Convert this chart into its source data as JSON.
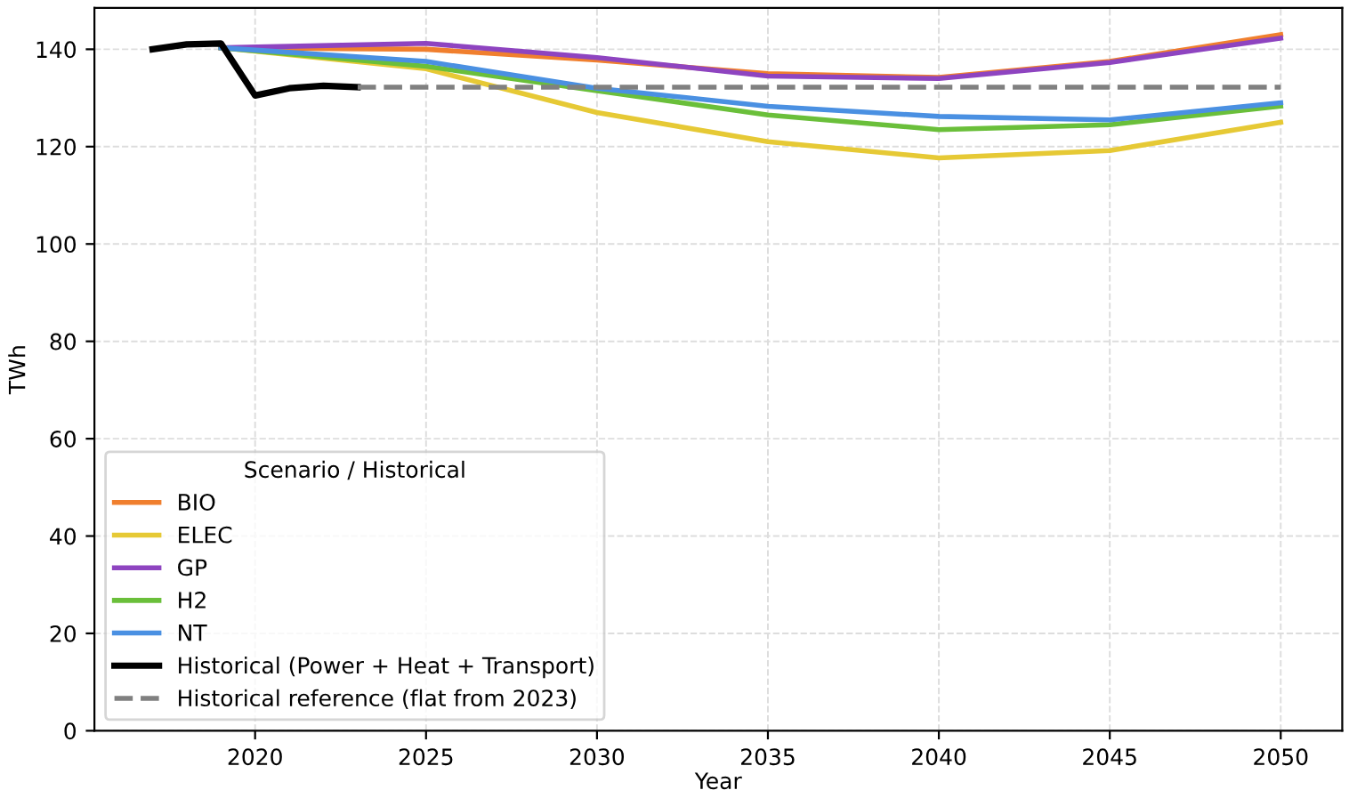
{
  "chart_data": {
    "type": "line",
    "xlabel": "Year",
    "ylabel": "TWh",
    "legend_title": "Scenario / Historical",
    "legend": "bottom left",
    "grid": true,
    "xlim": [
      2015.3,
      2051.8
    ],
    "ylim": [
      0,
      148.5
    ],
    "xticks": [
      2020,
      2025,
      2030,
      2035,
      2040,
      2045,
      2050
    ],
    "yticks": [
      0,
      20,
      40,
      60,
      80,
      100,
      120,
      140
    ],
    "series": [
      {
        "name": "BIO",
        "color": "#f07f2e",
        "x": [
          2019,
          2025,
          2030,
          2035,
          2040,
          2045,
          2050
        ],
        "values": [
          140.3,
          140,
          137.8,
          135,
          134.2,
          137.5,
          143
        ]
      },
      {
        "name": "ELEC",
        "color": "#e6c935",
        "x": [
          2019,
          2025,
          2030,
          2035,
          2040,
          2045,
          2050
        ],
        "values": [
          140.3,
          136,
          127,
          121,
          117.7,
          119.2,
          125
        ]
      },
      {
        "name": "GP",
        "color": "#8e44c0",
        "x": [
          2019,
          2025,
          2030,
          2035,
          2040,
          2045,
          2050
        ],
        "values": [
          140.3,
          141.2,
          138.3,
          134.5,
          134,
          137.3,
          142.3
        ]
      },
      {
        "name": "H2",
        "color": "#6abf3a",
        "x": [
          2019,
          2025,
          2030,
          2035,
          2040,
          2045,
          2050
        ],
        "values": [
          140.3,
          136.5,
          131.5,
          126.5,
          123.5,
          124.5,
          128.3
        ]
      },
      {
        "name": "NT",
        "color": "#4a90e2",
        "x": [
          2019,
          2025,
          2030,
          2035,
          2040,
          2045,
          2050
        ],
        "values": [
          140.3,
          137.5,
          132,
          128.3,
          126.2,
          125.5,
          129
        ]
      },
      {
        "name": "Historical (Power + Heat + Transport)",
        "color": "#000000",
        "x": [
          2017,
          2018,
          2019,
          2020,
          2021,
          2022,
          2023
        ],
        "values": [
          140,
          141,
          141.2,
          130.5,
          132,
          132.5,
          132.2
        ]
      },
      {
        "name": "Historical reference (flat from 2023)",
        "color": "#808080",
        "line_style": "dashed",
        "x": [
          2023,
          2050
        ],
        "values": [
          132.2,
          132.2
        ]
      }
    ]
  }
}
